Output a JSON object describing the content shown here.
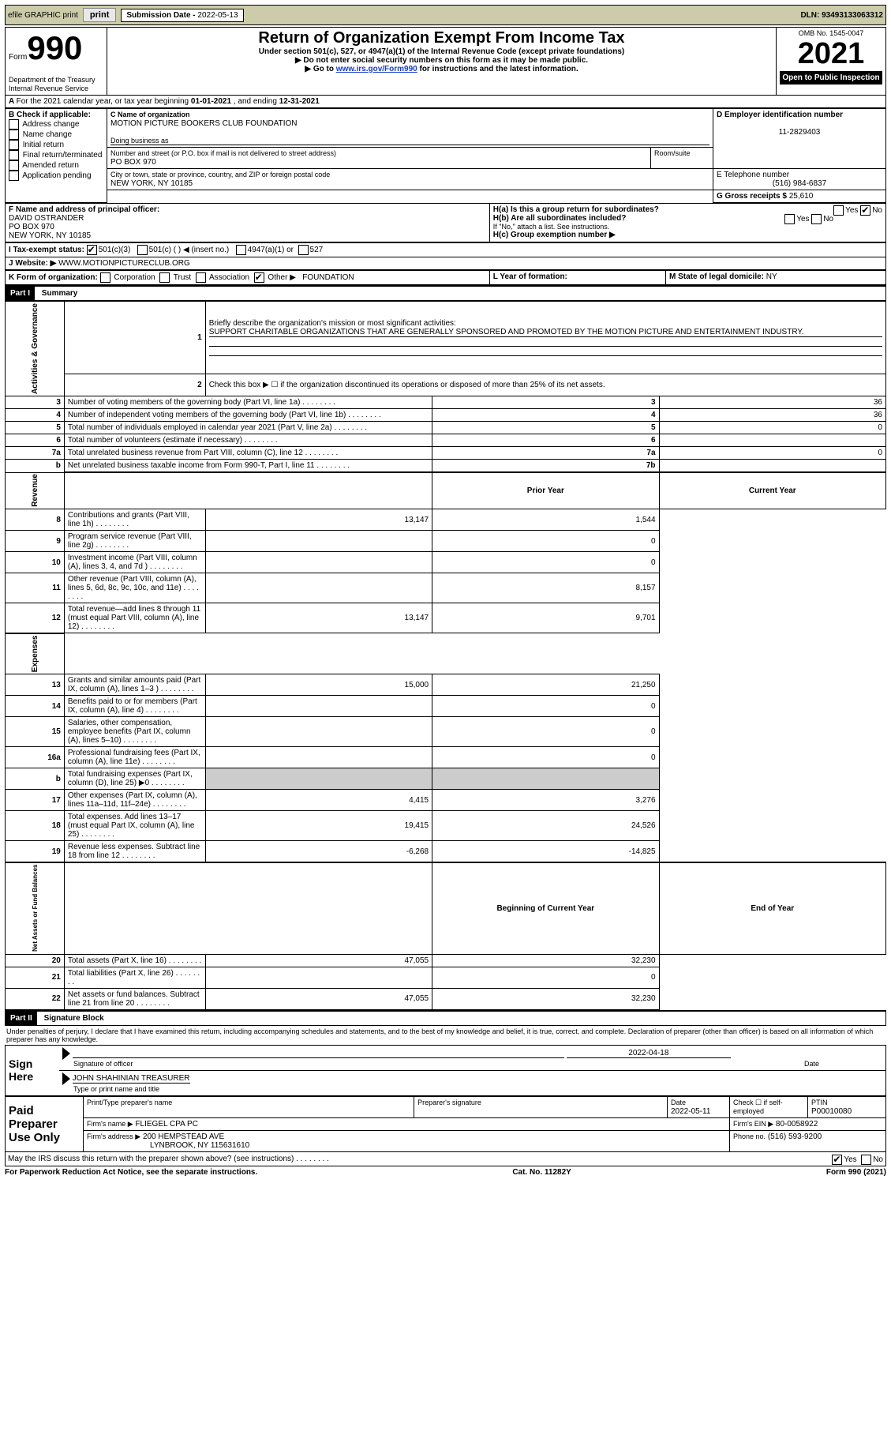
{
  "topbar": {
    "efile": "efile GRAPHIC print",
    "subdate_label": "Submission Date - ",
    "subdate": "2022-05-13",
    "dln_label": "DLN: ",
    "dln": "93493133063312"
  },
  "header": {
    "form_word": "Form",
    "form_no": "990",
    "dept": "Department of the Treasury",
    "irs": "Internal Revenue Service",
    "title": "Return of Organization Exempt From Income Tax",
    "sub1": "Under section 501(c), 527, or 4947(a)(1) of the Internal Revenue Code (except private foundations)",
    "sub2": "Do not enter social security numbers on this form as it may be made public.",
    "sub3_a": "Go to ",
    "sub3_link": "www.irs.gov/Form990",
    "sub3_b": " for instructions and the latest information.",
    "omb": "OMB No. 1545-0047",
    "year": "2021",
    "open": "Open to Public Inspection"
  },
  "a_line": {
    "text_a": "For the 2021 calendar year, or tax year beginning ",
    "begin": "01-01-2021",
    "text_b": " , and ending ",
    "end": "12-31-2021"
  },
  "b": {
    "label": "B Check if applicable:",
    "items": [
      "Address change",
      "Name change",
      "Initial return",
      "Final return/terminated",
      "Amended return",
      "Application pending"
    ]
  },
  "c": {
    "name_label": "C Name of organization",
    "name": "MOTION PICTURE BOOKERS CLUB FOUNDATION",
    "dba_label": "Doing business as",
    "addr_label": "Number and street (or P.O. box if mail is not delivered to street address)",
    "addr": "PO BOX 970",
    "room_label": "Room/suite",
    "city_label": "City or town, state or province, country, and ZIP or foreign postal code",
    "city": "NEW YORK, NY  10185"
  },
  "d": {
    "label": "D Employer identification number",
    "val": "11-2829403"
  },
  "e": {
    "label": "E Telephone number",
    "val": "(516) 984-6837"
  },
  "g": {
    "label": "G Gross receipts $ ",
    "val": "25,610"
  },
  "f": {
    "label": "F  Name and address of principal officer:",
    "name": "DAVID OSTRANDER",
    "addr1": "PO BOX 970",
    "addr2": "NEW YORK, NY  10185"
  },
  "h": {
    "a": "H(a)   Is this a group return for subordinates?",
    "b": "H(b)   Are all subordinates included?",
    "note": "If \"No,\" attach a list. See instructions.",
    "c": "H(c)   Group exemption number ▶",
    "yes": "Yes",
    "no": "No"
  },
  "i": {
    "label": "I     Tax-exempt status:",
    "o1": "501(c)(3)",
    "o2": "501(c) (  ) ◀ (insert no.)",
    "o3": "4947(a)(1) or",
    "o4": "527"
  },
  "j": {
    "label": "J    Website: ▶",
    "val": "WWW.MOTIONPICTURECLUB.ORG"
  },
  "k": {
    "label": "K Form of organization:",
    "opts": [
      "Corporation",
      "Trust",
      "Association",
      "Other ▶"
    ],
    "other_val": "FOUNDATION"
  },
  "l": {
    "label": "L Year of formation:"
  },
  "m": {
    "label": "M State of legal domicile: ",
    "val": "NY"
  },
  "part1": {
    "tag": "Part I",
    "title": "Summary",
    "q1a": "Briefly describe the organization's mission or most significant activities:",
    "q1b": "SUPPORT CHARITABLE ORGANIZATIONS THAT ARE GENERALLY SPONSORED AND PROMOTED BY THE MOTION PICTURE AND ENTERTAINMENT INDUSTRY.",
    "q2": "Check this box ▶ ☐  if the organization discontinued its operations or disposed of more than 25% of its net assets.",
    "lines": [
      {
        "n": "3",
        "t": "Number of voting members of the governing body (Part VI, line 1a)",
        "box": "3",
        "v": "36"
      },
      {
        "n": "4",
        "t": "Number of independent voting members of the governing body (Part VI, line 1b)",
        "box": "4",
        "v": "36"
      },
      {
        "n": "5",
        "t": "Total number of individuals employed in calendar year 2021 (Part V, line 2a)",
        "box": "5",
        "v": "0"
      },
      {
        "n": "6",
        "t": "Total number of volunteers (estimate if necessary)",
        "box": "6",
        "v": ""
      },
      {
        "n": "7a",
        "t": "Total unrelated business revenue from Part VIII, column (C), line 12",
        "box": "7a",
        "v": "0"
      },
      {
        "n": "b",
        "t": "Net unrelated business taxable income from Form 990-T, Part I, line 11",
        "box": "7b",
        "v": ""
      }
    ],
    "col_prior": "Prior Year",
    "col_curr": "Current Year",
    "sections": {
      "rev_label": "Revenue",
      "exp_label": "Expenses",
      "net_label": "Net Assets or Fund Balances",
      "ag_label": "Activities & Governance"
    },
    "rev": [
      {
        "n": "8",
        "t": "Contributions and grants (Part VIII, line 1h)",
        "p": "13,147",
        "c": "1,544"
      },
      {
        "n": "9",
        "t": "Program service revenue (Part VIII, line 2g)",
        "p": "",
        "c": "0"
      },
      {
        "n": "10",
        "t": "Investment income (Part VIII, column (A), lines 3, 4, and 7d )",
        "p": "",
        "c": "0"
      },
      {
        "n": "11",
        "t": "Other revenue (Part VIII, column (A), lines 5, 6d, 8c, 9c, 10c, and 11e)",
        "p": "",
        "c": "8,157"
      },
      {
        "n": "12",
        "t": "Total revenue—add lines 8 through 11 (must equal Part VIII, column (A), line 12)",
        "p": "13,147",
        "c": "9,701"
      }
    ],
    "exp": [
      {
        "n": "13",
        "t": "Grants and similar amounts paid (Part IX, column (A), lines 1–3 )",
        "p": "15,000",
        "c": "21,250"
      },
      {
        "n": "14",
        "t": "Benefits paid to or for members (Part IX, column (A), line 4)",
        "p": "",
        "c": "0"
      },
      {
        "n": "15",
        "t": "Salaries, other compensation, employee benefits (Part IX, column (A), lines 5–10)",
        "p": "",
        "c": "0"
      },
      {
        "n": "16a",
        "t": "Professional fundraising fees (Part IX, column (A), line 11e)",
        "p": "",
        "c": "0"
      },
      {
        "n": "b",
        "t": "Total fundraising expenses (Part IX, column (D), line 25) ▶0",
        "p": "shade",
        "c": "shade"
      },
      {
        "n": "17",
        "t": "Other expenses (Part IX, column (A), lines 11a–11d, 11f–24e)",
        "p": "4,415",
        "c": "3,276"
      },
      {
        "n": "18",
        "t": "Total expenses. Add lines 13–17 (must equal Part IX, column (A), line 25)",
        "p": "19,415",
        "c": "24,526"
      },
      {
        "n": "19",
        "t": "Revenue less expenses. Subtract line 18 from line 12",
        "p": "-6,268",
        "c": "-14,825"
      }
    ],
    "net_hdr_a": "Beginning of Current Year",
    "net_hdr_b": "End of Year",
    "net": [
      {
        "n": "20",
        "t": "Total assets (Part X, line 16)",
        "p": "47,055",
        "c": "32,230"
      },
      {
        "n": "21",
        "t": "Total liabilities (Part X, line 26)",
        "p": "",
        "c": "0"
      },
      {
        "n": "22",
        "t": "Net assets or fund balances. Subtract line 21 from line 20",
        "p": "47,055",
        "c": "32,230"
      }
    ]
  },
  "part2": {
    "tag": "Part II",
    "title": "Signature Block",
    "decl": "Under penalties of perjury, I declare that I have examined this return, including accompanying schedules and statements, and to the best of my knowledge and belief, it is true, correct, and complete. Declaration of preparer (other than officer) is based on all information of which preparer has any knowledge.",
    "sign_here": "Sign Here",
    "sig_label": "Signature of officer",
    "date_label": "Date",
    "sig_date": "2022-04-18",
    "officer": "JOHN SHAHINIAN  TREASURER",
    "officer_label": "Type or print name and title",
    "paid": "Paid Preparer Use Only",
    "pp_name_label": "Print/Type preparer's name",
    "pp_sig_label": "Preparer's signature",
    "pp_date_label": "Date",
    "pp_date": "2022-05-11",
    "pp_check": "Check ☐ if self-employed",
    "ptin_label": "PTIN",
    "ptin": "P00010080",
    "firm_name_label": "Firm's name    ▶",
    "firm_name": "FLIEGEL CPA PC",
    "firm_ein_label": "Firm's EIN ▶",
    "firm_ein": "80-0058922",
    "firm_addr_label": "Firm's address ▶",
    "firm_addr": "200 HEMPSTEAD AVE",
    "firm_city": "LYNBROOK, NY  115631610",
    "phone_label": "Phone no.",
    "phone": "(516) 593-9200",
    "discuss": "May the IRS discuss this return with the preparer shown above? (see instructions)"
  },
  "footer": {
    "left": "For Paperwork Reduction Act Notice, see the separate instructions.",
    "mid": "Cat. No. 11282Y",
    "right": "Form 990 (2021)"
  }
}
